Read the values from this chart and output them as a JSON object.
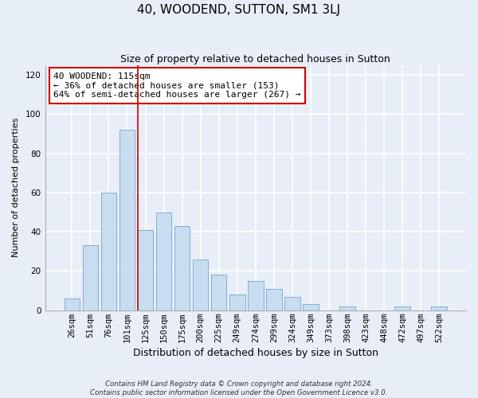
{
  "title": "40, WOODEND, SUTTON, SM1 3LJ",
  "subtitle": "Size of property relative to detached houses in Sutton",
  "xlabel": "Distribution of detached houses by size in Sutton",
  "ylabel": "Number of detached properties",
  "bar_labels": [
    "26sqm",
    "51sqm",
    "76sqm",
    "101sqm",
    "125sqm",
    "150sqm",
    "175sqm",
    "200sqm",
    "225sqm",
    "249sqm",
    "274sqm",
    "299sqm",
    "324sqm",
    "349sqm",
    "373sqm",
    "398sqm",
    "423sqm",
    "448sqm",
    "472sqm",
    "497sqm",
    "522sqm"
  ],
  "bar_values": [
    6,
    33,
    60,
    92,
    41,
    50,
    43,
    26,
    18,
    8,
    15,
    11,
    7,
    3,
    0,
    2,
    0,
    0,
    2,
    0,
    2
  ],
  "bar_color": "#c9ddf0",
  "bar_edge_color": "#7bafd4",
  "annotation_text": "40 WOODEND: 115sqm\n← 36% of detached houses are smaller (153)\n64% of semi-detached houses are larger (267) →",
  "annotation_box_color": "white",
  "annotation_box_edge_color": "#cc0000",
  "vline_x": 3.6,
  "vline_color": "#cc0000",
  "ylim": [
    0,
    125
  ],
  "yticks": [
    0,
    20,
    40,
    60,
    80,
    100,
    120
  ],
  "footer_line1": "Contains HM Land Registry data © Crown copyright and database right 2024.",
  "footer_line2": "Contains public sector information licensed under the Open Government Licence v3.0.",
  "bg_color": "#e8eef8",
  "plot_bg_color": "#e8eef8",
  "grid_color": "#ffffff",
  "title_fontsize": 11,
  "subtitle_fontsize": 9,
  "xlabel_fontsize": 9,
  "ylabel_fontsize": 8,
  "tick_fontsize": 7.5,
  "annot_fontsize": 8
}
